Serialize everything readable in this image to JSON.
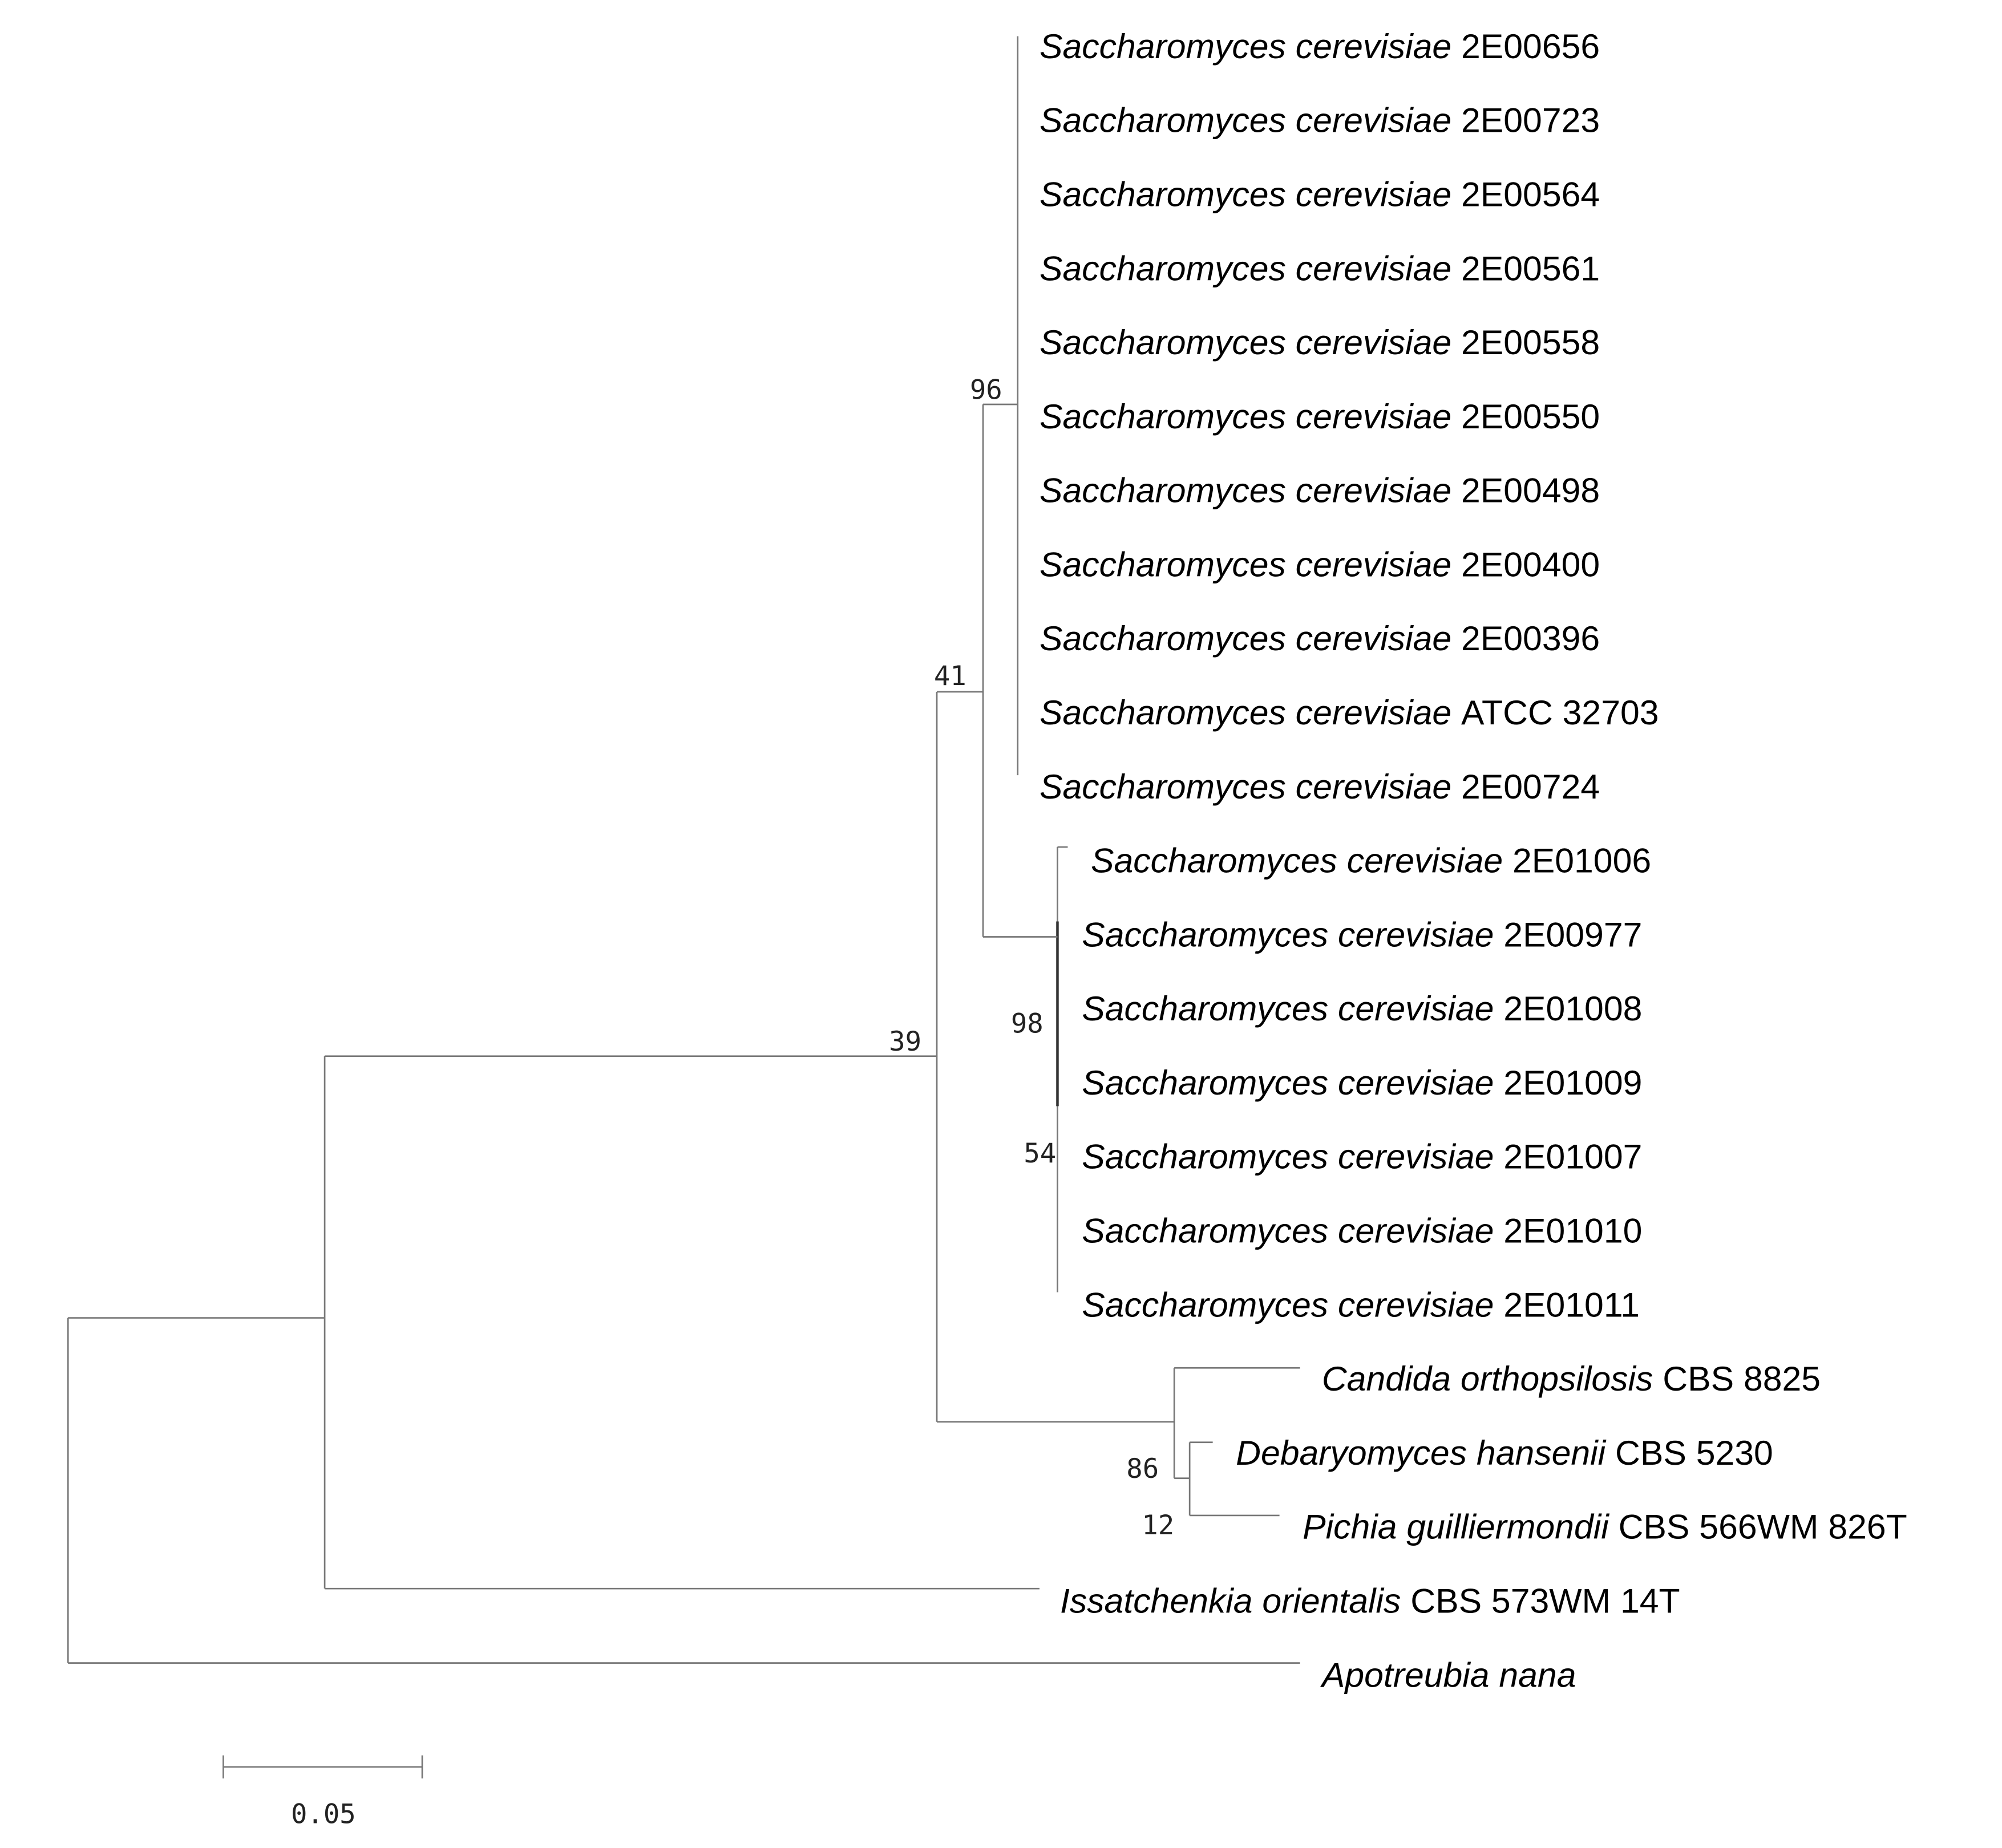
{
  "tree": {
    "leaves": [
      {
        "species": "Saccharomyces cerevisiae",
        "strain": "2E00656"
      },
      {
        "species": "Saccharomyces cerevisiae",
        "strain": "2E00723"
      },
      {
        "species": "Saccharomyces cerevisiae",
        "strain": "2E00564"
      },
      {
        "species": "Saccharomyces cerevisiae",
        "strain": "2E00561"
      },
      {
        "species": "Saccharomyces cerevisiae",
        "strain": "2E00558"
      },
      {
        "species": "Saccharomyces cerevisiae",
        "strain": "2E00550"
      },
      {
        "species": "Saccharomyces cerevisiae",
        "strain": "2E00498"
      },
      {
        "species": "Saccharomyces cerevisiae",
        "strain": "2E00400"
      },
      {
        "species": "Saccharomyces cerevisiae",
        "strain": "2E00396"
      },
      {
        "species": "Saccharomyces cerevisiae",
        "strain": "ATCC 32703"
      },
      {
        "species": "Saccharomyces cerevisiae",
        "strain": "2E00724"
      },
      {
        "species": "Saccharomyces cerevisiae",
        "strain": "2E01006"
      },
      {
        "species": "Saccharomyces cerevisiae",
        "strain": "2E00977"
      },
      {
        "species": "Saccharomyces cerevisiae",
        "strain": "2E01008"
      },
      {
        "species": "Saccharomyces cerevisiae",
        "strain": "2E01009"
      },
      {
        "species": "Saccharomyces cerevisiae",
        "strain": "2E01007"
      },
      {
        "species": "Saccharomyces cerevisiae",
        "strain": "2E01010"
      },
      {
        "species": "Saccharomyces cerevisiae",
        "strain": "2E01011"
      },
      {
        "species": "Candida orthopsilosis",
        "strain": "CBS 8825"
      },
      {
        "species": "Debaryomyces hansenii",
        "strain": "CBS 5230"
      },
      {
        "species": "Pichia guilliermondii",
        "strain": "CBS 566WM 826T"
      },
      {
        "species": "Issatchenkia orientalis",
        "strain": "CBS 573WM 14T"
      },
      {
        "species": "Apotreubia nana"
      }
    ],
    "bootstrap": [
      96,
      41,
      39,
      98,
      54,
      86,
      12
    ],
    "scale_bar": "0.05"
  }
}
